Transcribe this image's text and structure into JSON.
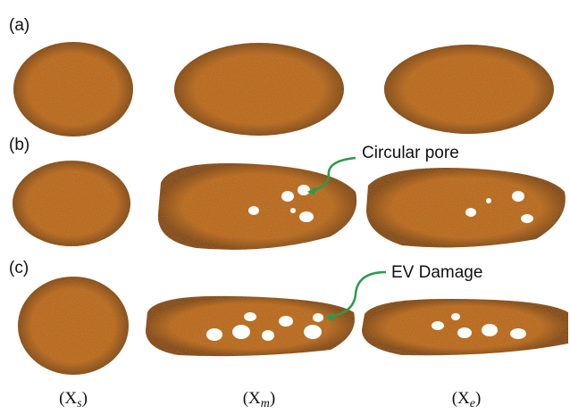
{
  "panels": [
    "(a)",
    "(b)",
    "(c)"
  ],
  "annotations": {
    "pore": "Circular pore",
    "damage": "EV Damage"
  },
  "columns": [
    {
      "open": "(X",
      "sub": "s",
      "close": ")"
    },
    {
      "open": "(X",
      "sub": "m",
      "close": ")"
    },
    {
      "open": "(X",
      "sub": "e",
      "close": ")"
    }
  ]
}
